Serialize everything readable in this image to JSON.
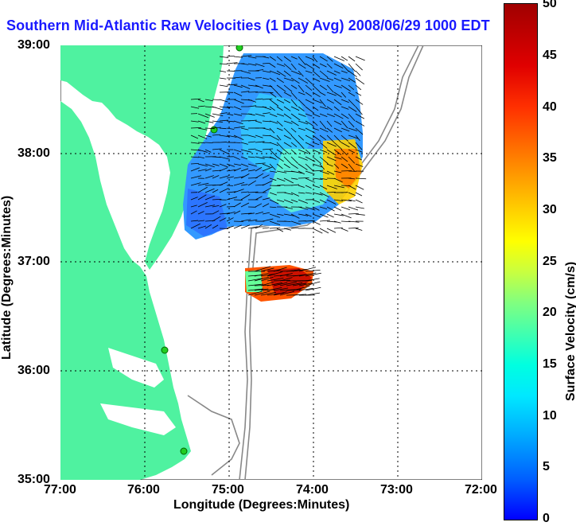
{
  "title": "Southern Mid-Atlantic Raw Velocities (1 Day Avg) 2008/06/29 1000 EDT",
  "xlabel": "Longitude (Degrees:Minutes)",
  "ylabel": "Latitude (Degrees:Minutes)",
  "xticks": [
    "77:00",
    "76:00",
    "75:00",
    "74:00",
    "73:00",
    "72:00"
  ],
  "yticks": [
    "39:00",
    "38:00",
    "37:00",
    "36:00",
    "35:00"
  ],
  "colorbar": {
    "label": "Surface Velocity (cm/s)",
    "ticks": [
      "0",
      "5",
      "10",
      "15",
      "20",
      "25",
      "30",
      "35",
      "40",
      "45",
      "50"
    ],
    "range": [
      0,
      50
    ]
  },
  "colors": {
    "land": "#4ff2a0",
    "title": "#1a1aff",
    "station": "#22cc22"
  },
  "chart_data": {
    "type": "heatmap",
    "xlim": [
      "77:00",
      "72:00"
    ],
    "ylim": [
      "35:00",
      "39:00"
    ],
    "grid": true,
    "value_range": [
      0,
      50
    ]
  }
}
